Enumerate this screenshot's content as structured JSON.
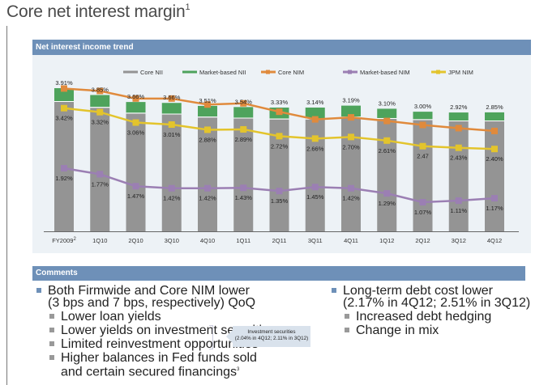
{
  "page": {
    "title": "Core net interest margin",
    "title_footnote": "1"
  },
  "chart_panel": {
    "header": "Net interest income trend"
  },
  "chart_data": {
    "type": "bar",
    "title": "Net interest income trend",
    "xlabel": "",
    "ylabel": "",
    "categories": [
      "FY2009",
      "1Q10",
      "2Q10",
      "3Q10",
      "4Q10",
      "1Q11",
      "2Q11",
      "3Q11",
      "4Q11",
      "1Q12",
      "2Q12",
      "3Q12",
      "4Q12"
    ],
    "category_footnotes": {
      "FY2009": "2"
    },
    "legend": [
      "Core NII",
      "Market-based NII",
      "Core NIM",
      "Market-based NIM",
      "JPM NIM"
    ],
    "legend_position": "top",
    "stacked_bars": {
      "series": [
        {
          "name": "Core NII",
          "color": "#949494",
          "values": [
            100,
            95.5,
            91,
            90.3,
            88,
            87.2,
            86.5,
            86.5,
            88,
            86.9,
            86,
            85,
            85
          ]
        },
        {
          "name": "Market-based NII",
          "color": "#4ea35c",
          "values": [
            10,
            9.2,
            8.3,
            8.3,
            8.3,
            8.2,
            8.5,
            8.5,
            8.5,
            7.2,
            5.8,
            6.2,
            6.3
          ]
        }
      ]
    },
    "series": [
      {
        "name": "Core NIM",
        "color": "#e08a3c",
        "values": [
          3.91,
          3.85,
          3.66,
          3.66,
          3.51,
          3.54,
          3.33,
          3.14,
          3.19,
          3.1,
          3.0,
          2.92,
          2.85
        ],
        "labels": [
          "3.91%",
          "3.85%",
          "3.66%",
          "3.66%",
          "3.51%",
          "3.54%",
          "3.33%",
          "3.14%",
          "3.19%",
          "3.10%",
          "3.00%",
          "2.92%",
          "2.85%"
        ]
      },
      {
        "name": "JPM NIM",
        "color": "#e3c42c",
        "values": [
          3.42,
          3.32,
          3.06,
          3.01,
          2.88,
          2.89,
          2.72,
          2.66,
          2.7,
          2.61,
          2.47,
          2.43,
          2.4
        ],
        "labels": [
          "3.42%",
          "3.32%",
          "3.06%",
          "3.01%",
          "2.88%",
          "2.89%",
          "2.72%",
          "2.66%",
          "2.70%",
          "2.61%",
          "2.47",
          "2.43%",
          "2.40%"
        ]
      },
      {
        "name": "Market-based NIM",
        "color": "#9b7fb3",
        "values": [
          1.92,
          1.77,
          1.47,
          1.42,
          1.42,
          1.43,
          1.35,
          1.45,
          1.42,
          1.29,
          1.07,
          1.11,
          1.17
        ],
        "labels": [
          "1.92%",
          "1.77%",
          "1.47%",
          "1.42%",
          "1.42%",
          "1.43%",
          "1.35%",
          "1.45%",
          "1.42%",
          "1.29%",
          "1.07%",
          "1.11%",
          "1.17%"
        ]
      }
    ],
    "grid": false
  },
  "comments": {
    "header": "Comments",
    "left": [
      {
        "level": 1,
        "lines": [
          "Both Firmwide and Core NIM lower",
          "(3 bps and 7 bps, respectively) QoQ"
        ]
      },
      {
        "level": 2,
        "lines": [
          "Lower loan yields"
        ]
      },
      {
        "level": 2,
        "lines": [
          "Lower yields on investment securities"
        ]
      },
      {
        "level": 2,
        "lines": [
          "Limited reinvestment opportunities"
        ]
      },
      {
        "level": 2,
        "lines": [
          "Higher balances in Fed funds sold",
          "and certain secured financings"
        ],
        "footnote": "3"
      }
    ],
    "callout": {
      "title": "Investment securities",
      "detail": "(2.04% in 4Q12; 2.11% in 3Q12)"
    },
    "right": [
      {
        "level": 1,
        "lines": [
          "Long-term debt cost lower",
          "(2.17% in 4Q12; 2.51% in 3Q12)"
        ]
      },
      {
        "level": 2,
        "lines": [
          "Increased debt hedging"
        ]
      },
      {
        "level": 2,
        "lines": [
          "Change in mix"
        ]
      }
    ]
  }
}
